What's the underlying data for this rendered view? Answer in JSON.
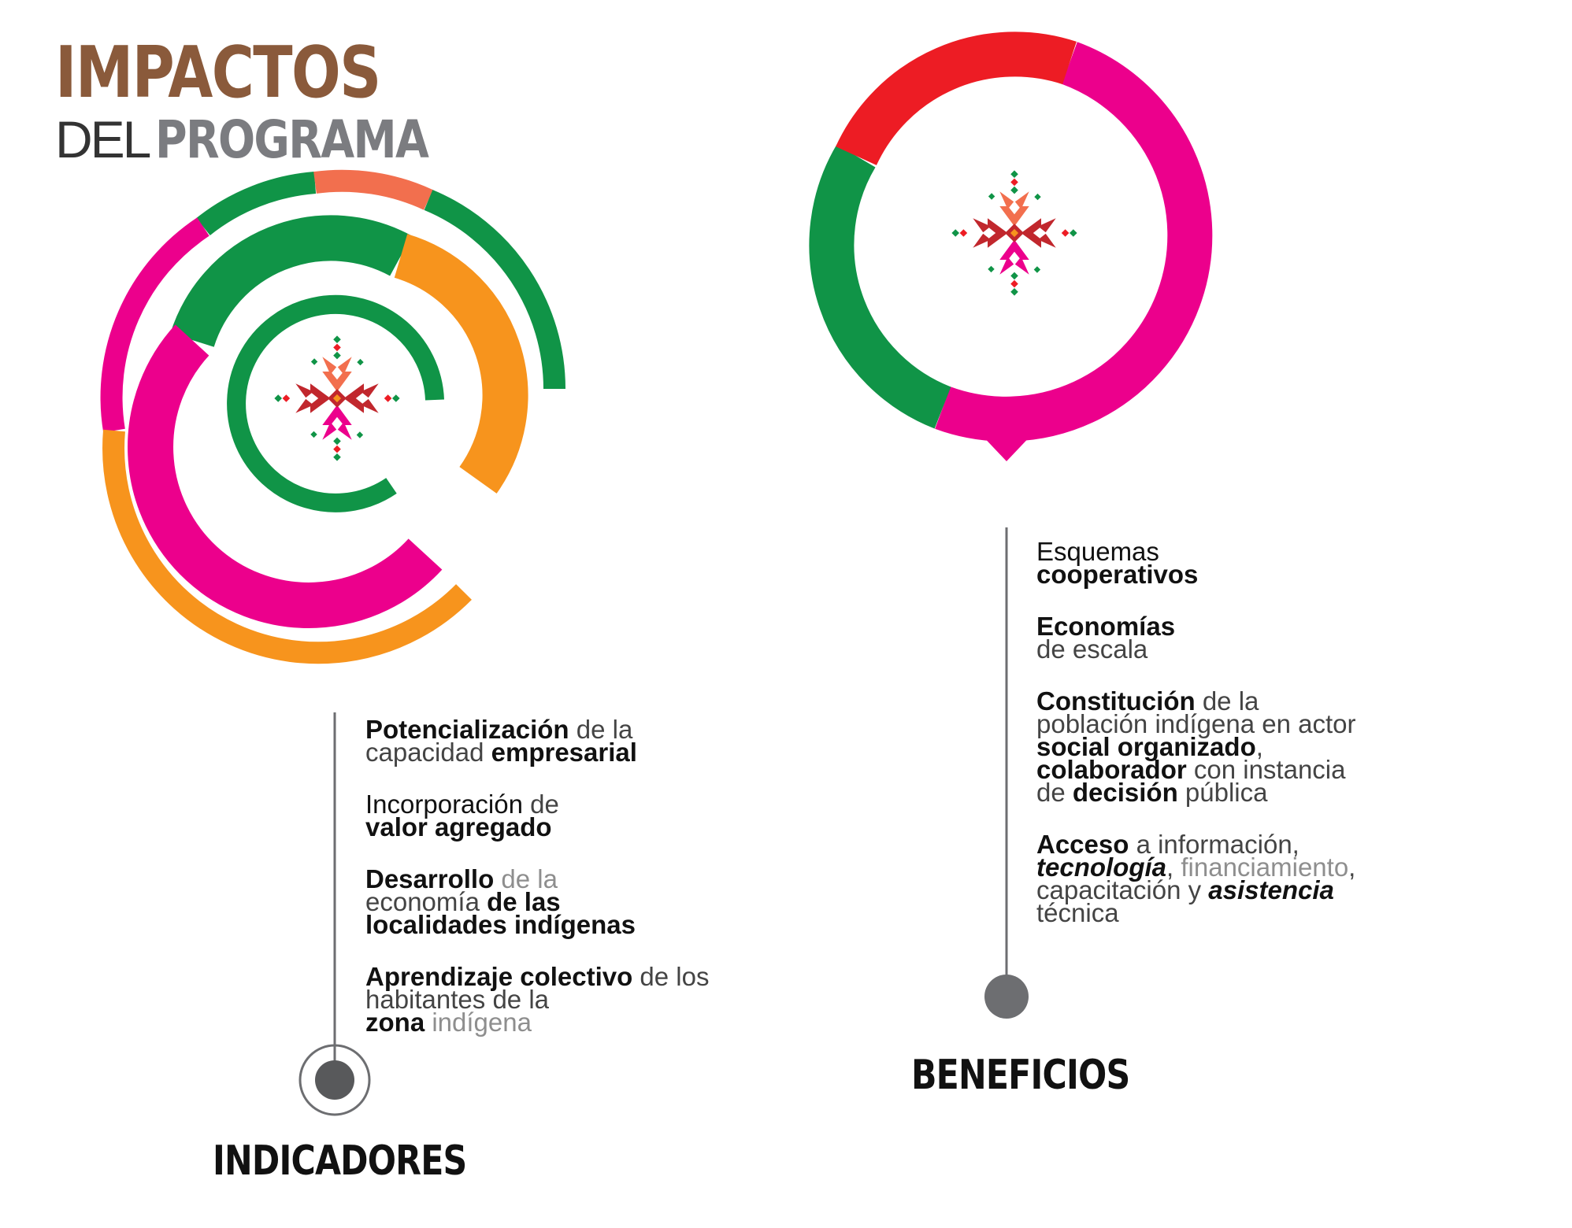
{
  "title": {
    "line1": "IMPACTOS",
    "line2_light": "DEL",
    "line2_bold": "PROGRAMA"
  },
  "colors": {
    "green": "#109447",
    "pink": "#ec008c",
    "orange": "#f7941d",
    "coral": "#f26f4e",
    "red": "#ed1c24",
    "brown": "#8a5a3b",
    "gray": "#6d6e71",
    "dark_red": "#c1272d"
  },
  "icons": {
    "left_rings": "concentric-rings-icon",
    "right_ring": "map-pin-ring-icon",
    "emblem": "indigenous-textile-star-icon"
  },
  "indicadores": {
    "label": "INDICADORES",
    "items": [
      [
        {
          "t": "Potencialización",
          "s": "b"
        },
        {
          "t": " de la",
          "s": "l"
        },
        {
          "br": true
        },
        {
          "t": "capacidad ",
          "s": "l"
        },
        {
          "t": "empresarial",
          "s": "b"
        }
      ],
      [
        {
          "t": "Incorporación",
          "s": "n"
        },
        {
          "t": " de",
          "s": "l"
        },
        {
          "br": true
        },
        {
          "t": "valor agregado",
          "s": "b"
        }
      ],
      [
        {
          "t": "Desarrollo",
          "s": "b"
        },
        {
          "t": " de la",
          "s": "xl"
        },
        {
          "br": true
        },
        {
          "t": "economía ",
          "s": "l"
        },
        {
          "t": "de las",
          "s": "b"
        },
        {
          "br": true
        },
        {
          "t": "localidades indígenas",
          "s": "b"
        }
      ],
      [
        {
          "t": "Aprendizaje colectivo",
          "s": "b"
        },
        {
          "t": " de los",
          "s": "l"
        },
        {
          "br": true
        },
        {
          "t": "habitantes de la",
          "s": "l"
        },
        {
          "br": true
        },
        {
          "t": "zona",
          "s": "b"
        },
        {
          "t": " indígena",
          "s": "xl"
        }
      ]
    ]
  },
  "beneficios": {
    "label": "BENEFICIOS",
    "items": [
      [
        {
          "t": "Esquemas",
          "s": "n"
        },
        {
          "br": true
        },
        {
          "t": "cooperativos",
          "s": "b"
        }
      ],
      [
        {
          "t": "Economías",
          "s": "b"
        },
        {
          "br": true
        },
        {
          "t": "de escala",
          "s": "l"
        }
      ],
      [
        {
          "t": "Constitución",
          "s": "b"
        },
        {
          "t": " de la",
          "s": "l"
        },
        {
          "br": true
        },
        {
          "t": "población indígena en actor",
          "s": "l"
        },
        {
          "br": true
        },
        {
          "t": "social organizado",
          "s": "b"
        },
        {
          "t": ",",
          "s": "l"
        },
        {
          "br": true
        },
        {
          "t": "colaborador",
          "s": "b"
        },
        {
          "t": " con instancia",
          "s": "l"
        },
        {
          "br": true
        },
        {
          "t": "de ",
          "s": "l"
        },
        {
          "t": "decisión",
          "s": "b"
        },
        {
          "t": " pública",
          "s": "l"
        }
      ],
      [
        {
          "t": "Acceso",
          "s": "b"
        },
        {
          "t": " a información,",
          "s": "l"
        },
        {
          "br": true
        },
        {
          "t": "tecnología",
          "s": "bi"
        },
        {
          "t": ", ",
          "s": "l"
        },
        {
          "t": "financiamiento",
          "s": "xl"
        },
        {
          "t": ",",
          "s": "l"
        },
        {
          "br": true
        },
        {
          "t": "capacitación y ",
          "s": "l"
        },
        {
          "t": "asistencia",
          "s": "bi"
        },
        {
          "br": true
        },
        {
          "t": "técnica",
          "s": "l"
        }
      ]
    ]
  }
}
